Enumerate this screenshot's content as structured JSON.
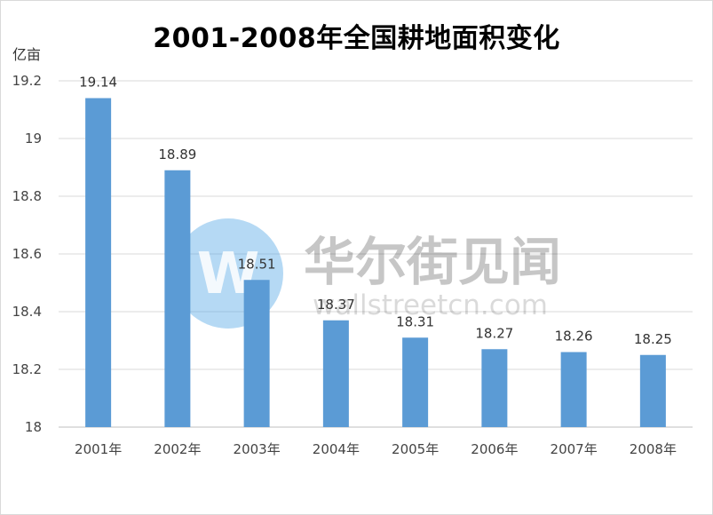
{
  "watermark": {
    "brand": "华尔街见闻",
    "url": "wallstreetcn.com",
    "logo_letter": "W"
  },
  "chart_data": {
    "type": "bar",
    "title": "2001-2008年全国耕地面积变化",
    "ylabel": "亿亩",
    "categories": [
      "2001年",
      "2002年",
      "2003年",
      "2004年",
      "2005年",
      "2006年",
      "2007年",
      "2008年"
    ],
    "values": [
      19.14,
      18.89,
      18.51,
      18.37,
      18.31,
      18.27,
      18.26,
      18.25
    ],
    "data_labels": [
      "19.14",
      "18.89",
      "18.51",
      "18.37",
      "18.31",
      "18.27",
      "18.26",
      "18.25"
    ],
    "ylim": [
      18,
      19.2
    ],
    "yticks": [
      18,
      18.2,
      18.4,
      18.6,
      18.8,
      19,
      19.2
    ],
    "ytick_labels": [
      "18",
      "18.2",
      "18.4",
      "18.6",
      "18.8",
      "19",
      "19.2"
    ],
    "bar_color": "#5b9bd5",
    "grid": true,
    "legend": "none"
  }
}
